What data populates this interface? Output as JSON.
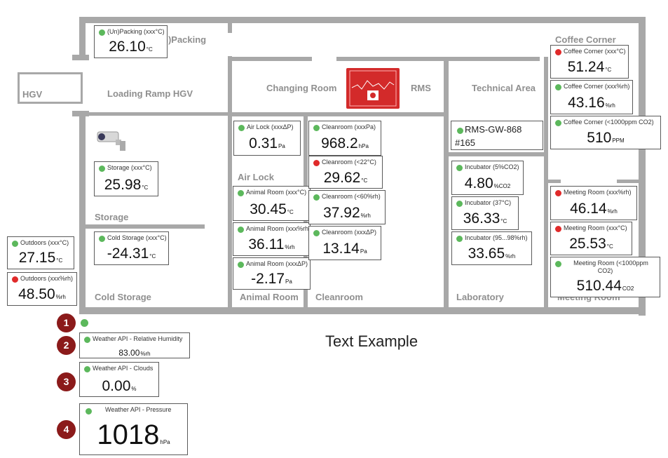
{
  "rooms": {
    "hgv": "HGV",
    "loading_ramp": "Loading Ramp HGV",
    "unpacking_partial": "n)Packing",
    "changing_room": "Changing Room",
    "rms": "RMS",
    "technical_area": "Technical Area",
    "coffee_corner": "Coffee Corner",
    "air_lock": "Air Lock",
    "storage": "Storage",
    "cold_storage": "Cold Storage",
    "animal_room": "Animal Room",
    "cleanroom": "Cleanroom",
    "laboratory": "Laboratory",
    "meeting_room_partial": "Meeting Room"
  },
  "gateway": {
    "name": "RMS-GW-868",
    "id": "#165",
    "status": "ok"
  },
  "sensors": {
    "unpacking": {
      "name": "(Un)Packing (xxx°C)",
      "value": "26.10",
      "unit": "°C",
      "status": "ok"
    },
    "storage": {
      "name": "Storage (xxx°C)",
      "value": "25.98",
      "unit": "°C",
      "status": "ok"
    },
    "cold_storage": {
      "name": "Cold Storage (xxx°C)",
      "value": "-24.31",
      "unit": "°C",
      "status": "ok"
    },
    "outdoors_temp": {
      "name": "Outdoors (xxx°C)",
      "value": "27.15",
      "unit": "°C",
      "status": "ok"
    },
    "outdoors_rh": {
      "name": "Outdoors (xxx%rh)",
      "value": "48.50",
      "unit": "%rh",
      "status": "alarm"
    },
    "air_lock": {
      "name": "Air Lock (xxxΔP)",
      "value": "0.31",
      "unit": "Pa",
      "status": "ok"
    },
    "animal_temp": {
      "name": "Animal Room (xxx°C)",
      "value": "30.45",
      "unit": "°C",
      "status": "ok"
    },
    "animal_rh": {
      "name": "Animal Room (xxx%rh)",
      "value": "36.11",
      "unit": "%rh",
      "status": "ok"
    },
    "animal_dp": {
      "name": "Animal Room (xxxΔP)",
      "value": "-2.17",
      "unit": "Pa",
      "status": "ok"
    },
    "clean_pa": {
      "name": "Cleanroom (xxxPa)",
      "value": "968.2",
      "unit": "hPa",
      "status": "ok"
    },
    "clean_temp": {
      "name": "Cleanroom (<22°C)",
      "value": "29.62",
      "unit": "°C",
      "status": "alarm"
    },
    "clean_rh": {
      "name": "Cleanroom (<60%rh)",
      "value": "37.92",
      "unit": "%rh",
      "status": "ok"
    },
    "clean_dp": {
      "name": "Cleanroom (xxxΔP)",
      "value": "13.14",
      "unit": "Pa",
      "status": "ok"
    },
    "incubator_co2": {
      "name": "Incubator (5%CO2)",
      "value": "4.80",
      "unit": "%CO2",
      "status": "ok"
    },
    "incubator_temp": {
      "name": "Incubator (37°C)",
      "value": "36.33",
      "unit": "°C",
      "status": "ok"
    },
    "incubator_rh": {
      "name": "Incubator (95...98%rh)",
      "value": "33.65",
      "unit": "%rh",
      "status": "ok"
    },
    "coffee_temp": {
      "name": "Coffee Corner (xxx°C)",
      "value": "51.24",
      "unit": "°C",
      "status": "alarm"
    },
    "coffee_rh": {
      "name": "Coffee Corner (xxx%rh)",
      "value": "43.16",
      "unit": "%rh",
      "status": "ok"
    },
    "coffee_co2": {
      "name": "Coffee Corner (<1000ppm CO2)",
      "value": "510",
      "unit": "PPM",
      "status": "ok"
    },
    "meeting_rh": {
      "name": "Meeting Room (xxx%rh)",
      "value": "46.14",
      "unit": "%rh",
      "status": "alarm"
    },
    "meeting_temp": {
      "name": "Meeting Room (xxx°C)",
      "value": "25.53",
      "unit": "°C",
      "status": "alarm"
    },
    "meeting_co2_line1": {
      "name": "Meeting Room (<1000ppm",
      "value": "510.44",
      "unit": "CO2",
      "status": "ok"
    },
    "meeting_co2_line2": "CO2)"
  },
  "badges": [
    "1",
    "2",
    "3",
    "4"
  ],
  "weather": {
    "humidity": {
      "name": "Weather API - Relative Humidity",
      "value": "83.00",
      "unit": "%rh",
      "status": "ok"
    },
    "clouds": {
      "name": "Weather API - Clouds",
      "value": "0.00",
      "unit": "%",
      "status": "ok"
    },
    "pressure": {
      "name": "Weather API - Pressure",
      "value": "1018",
      "unit": "hPa",
      "status": "ok"
    }
  },
  "text_example": "Text Example",
  "colors": {
    "ok": "#5cb85c",
    "alarm": "#e02a2a",
    "wall": "#a8a8a8",
    "badge": "#8b1a1a",
    "rms_panel": "#d32a2a"
  },
  "icons": {
    "camera": "camera-icon",
    "rms_device": "rms-device-icon"
  }
}
